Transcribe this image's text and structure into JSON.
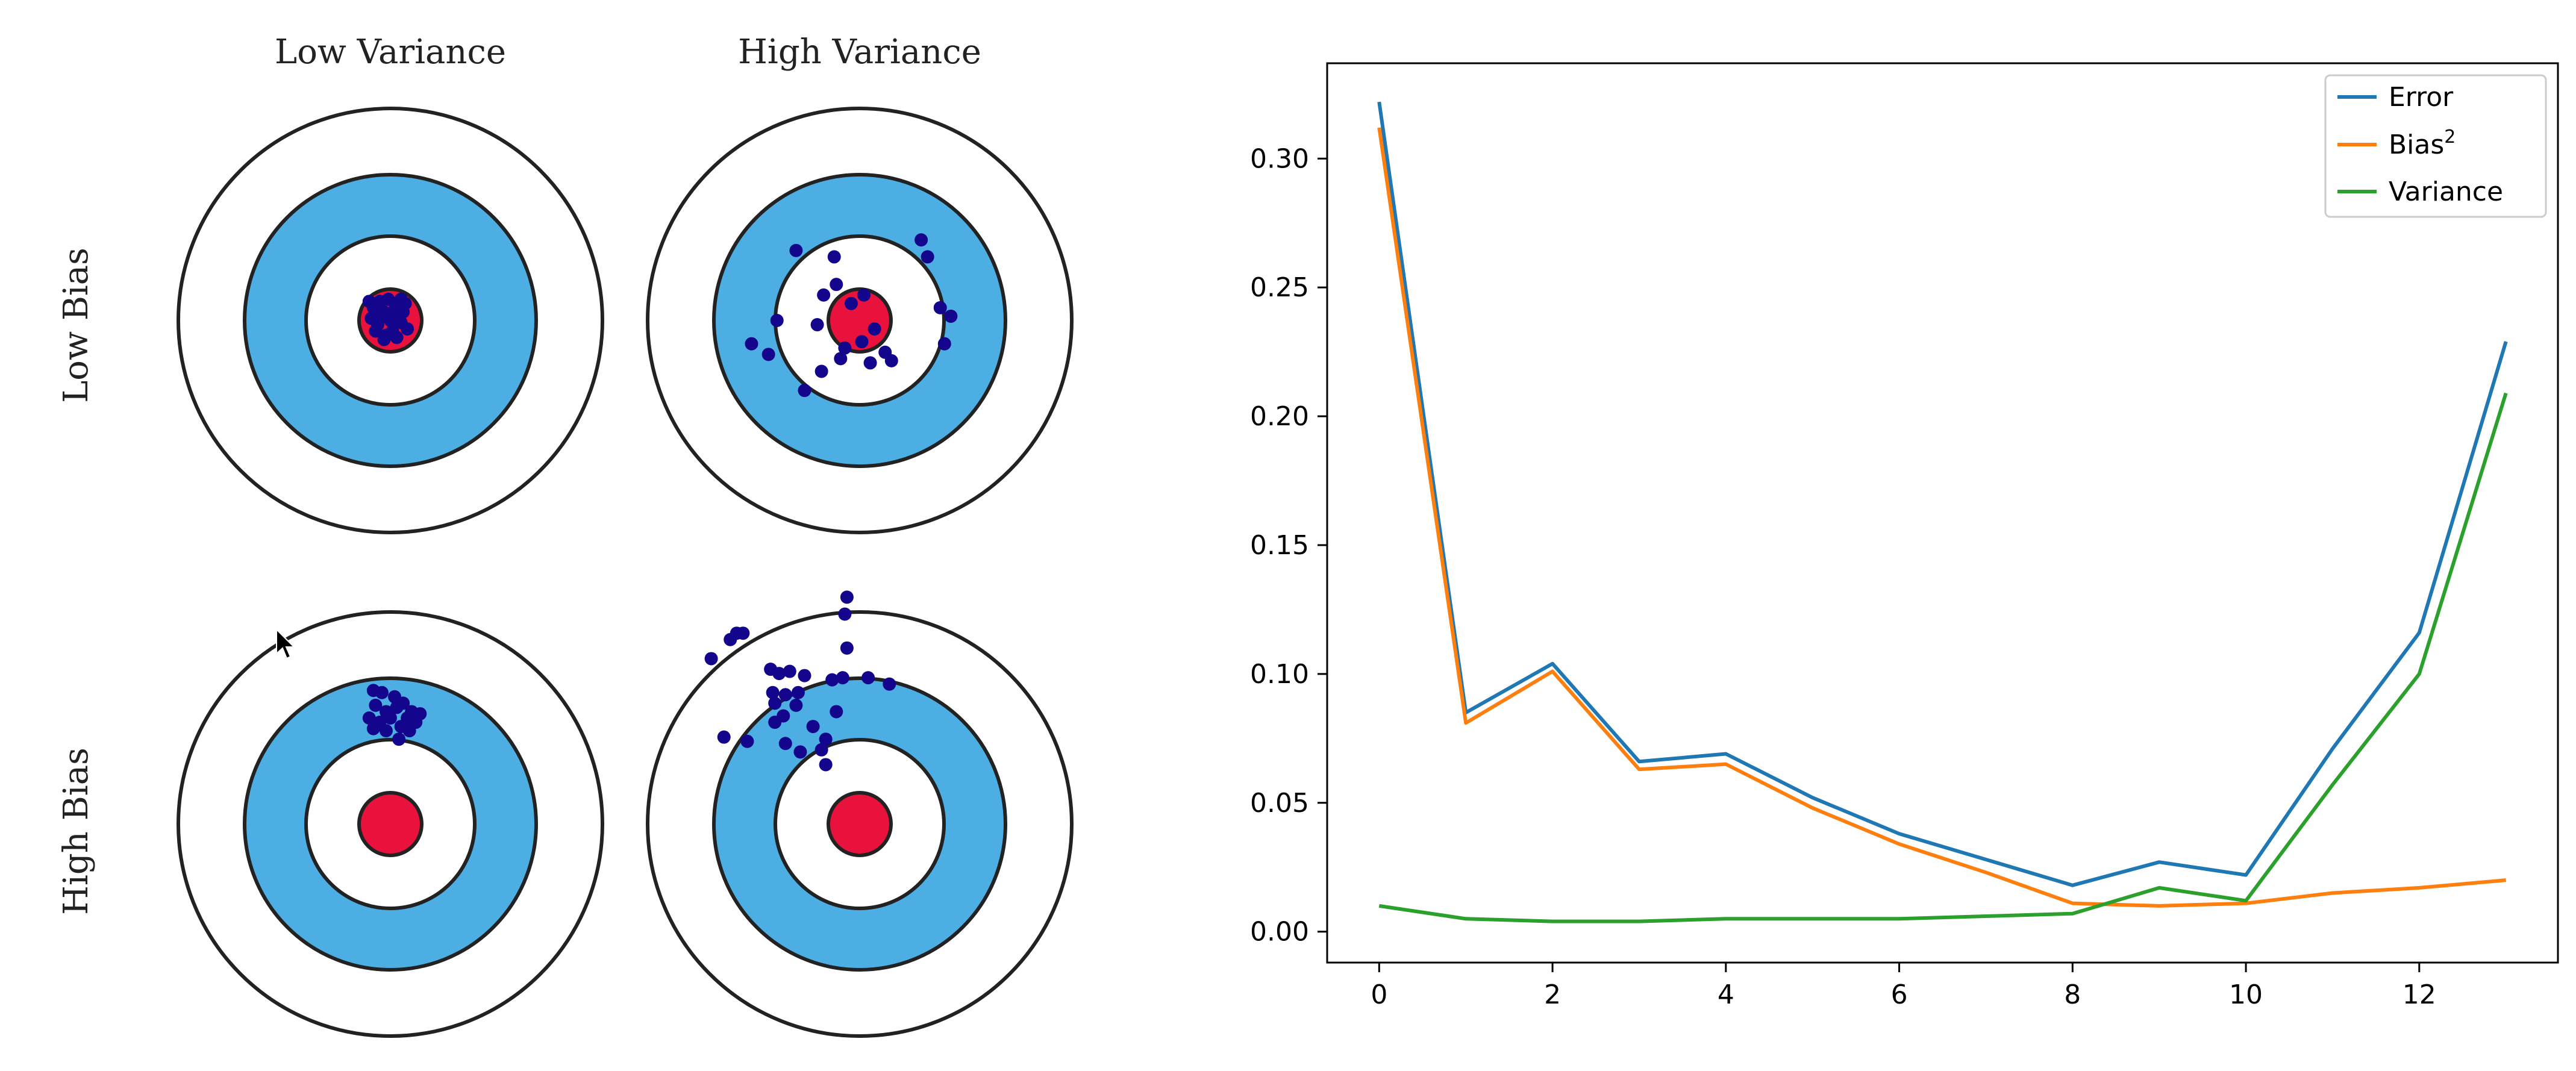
{
  "colors": {
    "ring_blue": "#4daee3",
    "bullseye": "#e8123c",
    "hit": "#13058c",
    "error": "#1f77b4",
    "bias2": "#ff7f0e",
    "variance": "#2ca02c"
  },
  "targets": {
    "col_titles": [
      "Low Variance",
      "High Variance"
    ],
    "row_titles": [
      "Low Bias",
      "High Bias"
    ],
    "panels": [
      {
        "name": "low-bias-low-variance",
        "points": [
          [
            -0.03,
            0.04
          ],
          [
            -0.06,
            -0.02
          ],
          [
            0.02,
            0.05
          ],
          [
            -0.02,
            -0.07
          ],
          [
            0.05,
            -0.01
          ],
          [
            -0.08,
            0.06
          ],
          [
            0.0,
            0.0
          ],
          [
            0.04,
            0.07
          ],
          [
            -0.05,
            0.09
          ],
          [
            0.06,
            0.04
          ],
          [
            -0.09,
            0.01
          ],
          [
            0.01,
            -0.05
          ],
          [
            -0.03,
            -0.09
          ],
          [
            0.03,
            -0.08
          ],
          [
            -0.07,
            -0.05
          ],
          [
            0.07,
            0.08
          ],
          [
            -0.1,
            0.09
          ],
          [
            0.08,
            -0.04
          ],
          [
            -0.01,
            0.1
          ],
          [
            0.02,
            0.01
          ],
          [
            -0.04,
            0.02
          ],
          [
            0.05,
            0.1
          ]
        ]
      },
      {
        "name": "low-bias-high-variance",
        "points": [
          [
            -0.3,
            0.33
          ],
          [
            -0.12,
            0.3
          ],
          [
            0.29,
            0.38
          ],
          [
            0.32,
            0.3
          ],
          [
            -0.51,
            -0.11
          ],
          [
            -0.43,
            -0.16
          ],
          [
            -0.39,
            0.0
          ],
          [
            -0.26,
            -0.33
          ],
          [
            -0.18,
            -0.24
          ],
          [
            -0.09,
            -0.18
          ],
          [
            0.05,
            -0.2
          ],
          [
            0.15,
            -0.19
          ],
          [
            0.38,
            0.06
          ],
          [
            0.43,
            0.02
          ],
          [
            0.4,
            -0.11
          ],
          [
            -0.2,
            -0.02
          ],
          [
            -0.17,
            0.12
          ],
          [
            -0.11,
            0.17
          ],
          [
            -0.04,
            0.08
          ],
          [
            0.01,
            -0.1
          ],
          [
            0.07,
            -0.04
          ],
          [
            0.12,
            -0.15
          ],
          [
            -0.07,
            -0.13
          ],
          [
            0.02,
            0.12
          ]
        ]
      },
      {
        "name": "high-bias-low-variance",
        "points": [
          [
            -0.08,
            0.63
          ],
          [
            -0.04,
            0.62
          ],
          [
            0.02,
            0.6
          ],
          [
            0.06,
            0.57
          ],
          [
            0.1,
            0.53
          ],
          [
            0.14,
            0.52
          ],
          [
            -0.07,
            0.56
          ],
          [
            -0.02,
            0.53
          ],
          [
            0.03,
            0.55
          ],
          [
            0.08,
            0.5
          ],
          [
            -0.1,
            0.5
          ],
          [
            -0.05,
            0.48
          ],
          [
            0.0,
            0.5
          ],
          [
            0.05,
            0.46
          ],
          [
            0.09,
            0.44
          ],
          [
            -0.02,
            0.44
          ],
          [
            0.04,
            0.4
          ],
          [
            -0.08,
            0.45
          ],
          [
            0.12,
            0.48
          ]
        ]
      },
      {
        "name": "high-bias-high-variance",
        "points": [
          [
            -0.7,
            0.78
          ],
          [
            -0.58,
            0.9
          ],
          [
            -0.61,
            0.87
          ],
          [
            -0.55,
            0.9
          ],
          [
            -0.06,
            1.07
          ],
          [
            -0.07,
            0.99
          ],
          [
            -0.06,
            0.83
          ],
          [
            -0.42,
            0.73
          ],
          [
            -0.38,
            0.71
          ],
          [
            -0.33,
            0.72
          ],
          [
            -0.26,
            0.7
          ],
          [
            -0.13,
            0.68
          ],
          [
            -0.08,
            0.69
          ],
          [
            0.04,
            0.69
          ],
          [
            0.14,
            0.66
          ],
          [
            -0.41,
            0.62
          ],
          [
            -0.35,
            0.61
          ],
          [
            -0.29,
            0.62
          ],
          [
            -0.4,
            0.57
          ],
          [
            -0.3,
            0.56
          ],
          [
            -0.36,
            0.51
          ],
          [
            -0.4,
            0.48
          ],
          [
            -0.11,
            0.53
          ],
          [
            -0.22,
            0.46
          ],
          [
            -0.64,
            0.41
          ],
          [
            -0.53,
            0.39
          ],
          [
            -0.16,
            0.4
          ],
          [
            -0.18,
            0.35
          ],
          [
            -0.35,
            0.38
          ],
          [
            -0.28,
            0.34
          ],
          [
            -0.16,
            0.28
          ]
        ]
      }
    ]
  },
  "chart_data": {
    "type": "line",
    "x": [
      0,
      1,
      2,
      3,
      4,
      5,
      6,
      7,
      8,
      9,
      10,
      11,
      12,
      13
    ],
    "xlim": [
      -0.6,
      13.6
    ],
    "ylim": [
      -0.012,
      0.337
    ],
    "xticks": [
      0,
      2,
      4,
      6,
      8,
      10,
      12
    ],
    "yticks": [
      0.0,
      0.05,
      0.1,
      0.15,
      0.2,
      0.25,
      0.3
    ],
    "xtick_labels": [
      "0",
      "2",
      "4",
      "6",
      "8",
      "10",
      "12"
    ],
    "ytick_labels": [
      "0.00",
      "0.05",
      "0.10",
      "0.15",
      "0.20",
      "0.25",
      "0.30"
    ],
    "legend_position": "top-right",
    "series": [
      {
        "name": "Error",
        "color": "#1f77b4",
        "values": [
          0.322,
          0.085,
          0.104,
          0.066,
          0.069,
          0.052,
          0.038,
          0.028,
          0.018,
          0.027,
          0.022,
          0.071,
          0.116,
          0.229
        ]
      },
      {
        "name": "Bias²",
        "color": "#ff7f0e",
        "values": [
          0.312,
          0.081,
          0.101,
          0.063,
          0.065,
          0.048,
          0.034,
          0.023,
          0.011,
          0.01,
          0.011,
          0.015,
          0.017,
          0.02
        ]
      },
      {
        "name": "Variance",
        "color": "#2ca02c",
        "values": [
          0.01,
          0.005,
          0.004,
          0.004,
          0.005,
          0.005,
          0.005,
          0.006,
          0.007,
          0.017,
          0.012,
          0.057,
          0.1,
          0.209
        ]
      }
    ],
    "legend_labels": {
      "error": "Error",
      "bias_base": "Bias",
      "bias_sup": "2",
      "variance": "Variance"
    }
  }
}
